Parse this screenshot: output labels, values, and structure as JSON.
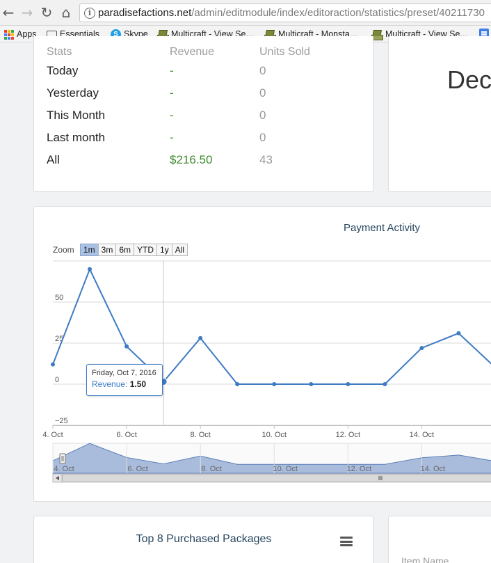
{
  "browser": {
    "back": "←",
    "forward": "→",
    "reload": "↻",
    "home": "⌂",
    "url_host": "paradisefactions.net",
    "url_path": "/admin/editmodule/index/editoraction/statistics/preset/40211730",
    "bookmarks": [
      "Apps",
      "Essentials",
      "Skype",
      "Multicraft - View Se...",
      "Multicraft - Monsta...",
      "Multicraft - View Se..."
    ],
    "apps_colors": [
      "#e94235",
      "#fbbc04",
      "#34a853",
      "#4285f4",
      "#ea4335",
      "#fbbc04",
      "#34a853",
      "#4285f4",
      "#ea4335"
    ]
  },
  "stats": {
    "headers": [
      "Stats",
      "Revenue",
      "Units Sold"
    ],
    "rows": [
      {
        "label": "Today",
        "revenue": "-",
        "units": "0"
      },
      {
        "label": "Yesterday",
        "revenue": "-",
        "units": "0"
      },
      {
        "label": "This Month",
        "revenue": "-",
        "units": "0"
      },
      {
        "label": "Last month",
        "revenue": "-",
        "units": "0"
      },
      {
        "label": "All",
        "revenue": "$216.50",
        "units": "43"
      }
    ]
  },
  "right_panel": {
    "text": "Dec"
  },
  "chart": {
    "zoom_label": "Zoom",
    "zoom_buttons": [
      "1m",
      "3m",
      "6m",
      "YTD",
      "1y",
      "All"
    ],
    "zoom_active": "1m",
    "tooltip": {
      "date": "Friday, Oct 7, 2016",
      "series": "Revenue",
      "value": "1.50"
    },
    "accent": "#3d7bc4"
  },
  "chart_data": {
    "type": "line",
    "title": "Payment Activity",
    "xlabel": "",
    "ylabel": "",
    "x": [
      4,
      5,
      6,
      7,
      8,
      9,
      10,
      11,
      12,
      13,
      14,
      15,
      16
    ],
    "x_unit": "day of Oct 2016",
    "series": [
      {
        "values": [
          12,
          70,
          23,
          1.5,
          28,
          0,
          0,
          0,
          0,
          0,
          22,
          31,
          10
        ]
      }
    ],
    "xlim": [
      4,
      16.5
    ],
    "ylim": [
      -25,
      75
    ],
    "y_ticks": [
      "50",
      "25",
      "0",
      "−25"
    ],
    "x_tick_labels": [
      "4. Oct",
      "6. Oct",
      "8. Oct",
      "10. Oct",
      "12. Oct",
      "14. Oct"
    ],
    "x_tick_values": [
      4,
      6,
      8,
      10,
      12,
      14
    ],
    "navigator_labels": [
      "4. Oct",
      "6. Oct",
      "8. Oct",
      "10. Oct",
      "12. Oct",
      "14. Oct"
    ],
    "grid": true,
    "legend": "none"
  },
  "top8": {
    "title": "Top 8 Purchased Packages"
  },
  "items": {
    "header": "Item Name"
  }
}
